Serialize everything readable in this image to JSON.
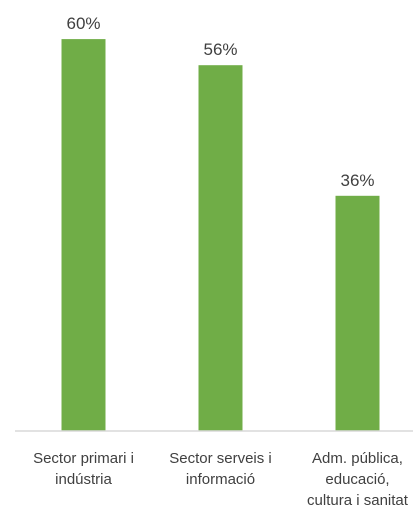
{
  "chart_data": {
    "type": "bar",
    "categories": [
      [
        "Sector primari i",
        "indústria"
      ],
      [
        "Sector serveis i",
        "informació"
      ],
      [
        "Adm. pública,",
        "educació,",
        "cultura i sanitat"
      ]
    ],
    "values": [
      60,
      56,
      36
    ],
    "value_labels": [
      "60%",
      "56%",
      "36%"
    ],
    "ylim": [
      0,
      62
    ],
    "bar_color": "#70ad47",
    "axis_color": "#d9d9d9",
    "text_color": "#404040",
    "grid": false,
    "legend": "none"
  }
}
